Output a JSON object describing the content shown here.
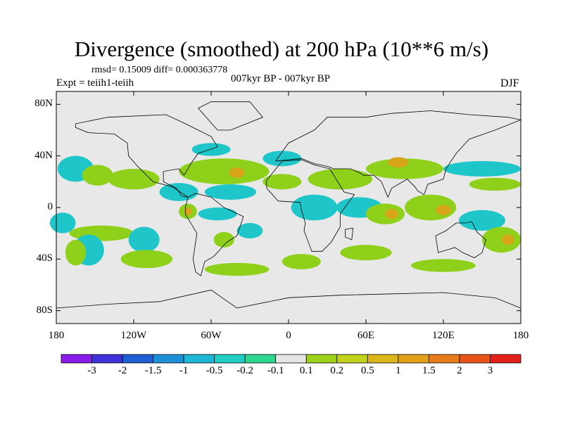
{
  "title": "Divergence (smoothed) at 200 hPa (10**6 m/s)",
  "stats": "rmsd= 0.15009 diff= 0.000363778",
  "experiment": "Expt = teiih1-teiih",
  "period": "007kyr BP - 007kyr BP",
  "season": "DJF",
  "map": {
    "projection": "cylindrical equidistant",
    "lon_range": [
      -180,
      180
    ],
    "lat_range": [
      -90,
      90
    ],
    "lat_ticks": [
      {
        "value": 80,
        "label": "80N"
      },
      {
        "value": 40,
        "label": "40N"
      },
      {
        "value": 0,
        "label": "0"
      },
      {
        "value": -40,
        "label": "40S"
      },
      {
        "value": -80,
        "label": "80S"
      }
    ],
    "lon_ticks": [
      {
        "value": -180,
        "label": "180"
      },
      {
        "value": -120,
        "label": "120W"
      },
      {
        "value": -60,
        "label": "60W"
      },
      {
        "value": 0,
        "label": "0"
      },
      {
        "value": 60,
        "label": "60E"
      },
      {
        "value": 120,
        "label": "120E"
      },
      {
        "value": 180,
        "label": "180"
      }
    ],
    "background_color": "#e8e8e8",
    "field_regions": [
      {
        "color": "#1fc6c9",
        "lon": -165,
        "lat": 30,
        "rlon": 14,
        "rlat": 10
      },
      {
        "color": "#8fd01a",
        "lon": -148,
        "lat": 25,
        "rlon": 12,
        "rlat": 8
      },
      {
        "color": "#8fd01a",
        "lon": -120,
        "lat": 22,
        "rlon": 20,
        "rlat": 8
      },
      {
        "color": "#1fc6c9",
        "lon": -175,
        "lat": -12,
        "rlon": 10,
        "rlat": 8
      },
      {
        "color": "#8fd01a",
        "lon": -145,
        "lat": -20,
        "rlon": 25,
        "rlat": 6
      },
      {
        "color": "#1fc6c9",
        "lon": -155,
        "lat": -33,
        "rlon": 12,
        "rlat": 12
      },
      {
        "color": "#8fd01a",
        "lon": -165,
        "lat": -35,
        "rlon": 8,
        "rlat": 10
      },
      {
        "color": "#1fc6c9",
        "lon": -112,
        "lat": -25,
        "rlon": 12,
        "rlat": 10
      },
      {
        "color": "#8fd01a",
        "lon": -110,
        "lat": -40,
        "rlon": 20,
        "rlat": 7
      },
      {
        "color": "#1fc6c9",
        "lon": -85,
        "lat": 12,
        "rlon": 15,
        "rlat": 7
      },
      {
        "color": "#8fd01a",
        "lon": -78,
        "lat": -3,
        "rlon": 7,
        "rlat": 6
      },
      {
        "color": "#d7a51a",
        "lon": -78,
        "lat": -3,
        "rlon": 3,
        "rlat": 3
      },
      {
        "color": "#8fd01a",
        "lon": -50,
        "lat": 28,
        "rlon": 35,
        "rlat": 10
      },
      {
        "color": "#d7a51a",
        "lon": -40,
        "lat": 27,
        "rlon": 6,
        "rlat": 4
      },
      {
        "color": "#1fc6c9",
        "lon": -60,
        "lat": 45,
        "rlon": 15,
        "rlat": 5
      },
      {
        "color": "#1fc6c9",
        "lon": -5,
        "lat": 38,
        "rlon": 15,
        "rlat": 6
      },
      {
        "color": "#1fc6c9",
        "lon": -45,
        "lat": 12,
        "rlon": 20,
        "rlat": 6
      },
      {
        "color": "#1fc6c9",
        "lon": -55,
        "lat": -5,
        "rlon": 15,
        "rlat": 5
      },
      {
        "color": "#8fd01a",
        "lon": -50,
        "lat": -25,
        "rlon": 8,
        "rlat": 6
      },
      {
        "color": "#1fc6c9",
        "lon": -30,
        "lat": -18,
        "rlon": 10,
        "rlat": 6
      },
      {
        "color": "#8fd01a",
        "lon": -40,
        "lat": -48,
        "rlon": 25,
        "rlat": 5
      },
      {
        "color": "#8fd01a",
        "lon": -5,
        "lat": 20,
        "rlon": 15,
        "rlat": 6
      },
      {
        "color": "#8fd01a",
        "lon": 40,
        "lat": 22,
        "rlon": 25,
        "rlat": 8
      },
      {
        "color": "#1fc6c9",
        "lon": 20,
        "lat": 0,
        "rlon": 18,
        "rlat": 10
      },
      {
        "color": "#1fc6c9",
        "lon": 55,
        "lat": 0,
        "rlon": 18,
        "rlat": 8
      },
      {
        "color": "#8fd01a",
        "lon": 75,
        "lat": -5,
        "rlon": 15,
        "rlat": 8
      },
      {
        "color": "#d7a51a",
        "lon": 80,
        "lat": -5,
        "rlon": 5,
        "rlat": 4
      },
      {
        "color": "#8fd01a",
        "lon": 10,
        "lat": -42,
        "rlon": 15,
        "rlat": 6
      },
      {
        "color": "#8fd01a",
        "lon": 60,
        "lat": -35,
        "rlon": 20,
        "rlat": 6
      },
      {
        "color": "#8fd01a",
        "lon": 90,
        "lat": 30,
        "rlon": 30,
        "rlat": 8
      },
      {
        "color": "#d7a51a",
        "lon": 85,
        "lat": 35,
        "rlon": 8,
        "rlat": 4
      },
      {
        "color": "#1fc6c9",
        "lon": 150,
        "lat": 30,
        "rlon": 30,
        "rlat": 6
      },
      {
        "color": "#8fd01a",
        "lon": 160,
        "lat": 18,
        "rlon": 20,
        "rlat": 5
      },
      {
        "color": "#8fd01a",
        "lon": 110,
        "lat": 0,
        "rlon": 20,
        "rlat": 10
      },
      {
        "color": "#d7a51a",
        "lon": 120,
        "lat": -2,
        "rlon": 6,
        "rlat": 4
      },
      {
        "color": "#1fc6c9",
        "lon": 150,
        "lat": -10,
        "rlon": 18,
        "rlat": 8
      },
      {
        "color": "#8fd01a",
        "lon": 165,
        "lat": -25,
        "rlon": 15,
        "rlat": 10
      },
      {
        "color": "#d7a51a",
        "lon": 170,
        "lat": -25,
        "rlon": 5,
        "rlat": 4
      },
      {
        "color": "#8fd01a",
        "lon": 120,
        "lat": -45,
        "rlon": 25,
        "rlat": 5
      }
    ],
    "land_outlines": [
      [
        [
          -165,
          65
        ],
        [
          -140,
          70
        ],
        [
          -95,
          72
        ],
        [
          -80,
          65
        ],
        [
          -60,
          55
        ],
        [
          -55,
          47
        ],
        [
          -70,
          42
        ],
        [
          -75,
          35
        ],
        [
          -81,
          25
        ],
        [
          -85,
          30
        ],
        [
          -97,
          28
        ],
        [
          -97,
          20
        ],
        [
          -87,
          15
        ],
        [
          -83,
          9
        ],
        [
          -78,
          8
        ],
        [
          -90,
          16
        ],
        [
          -105,
          20
        ],
        [
          -117,
          32
        ],
        [
          -124,
          40
        ],
        [
          -125,
          50
        ],
        [
          -135,
          57
        ],
        [
          -155,
          58
        ],
        [
          -165,
          62
        ],
        [
          -165,
          65
        ]
      ],
      [
        [
          -78,
          8
        ],
        [
          -72,
          11
        ],
        [
          -60,
          8
        ],
        [
          -50,
          0
        ],
        [
          -35,
          -7
        ],
        [
          -40,
          -22
        ],
        [
          -48,
          -27
        ],
        [
          -58,
          -38
        ],
        [
          -65,
          -42
        ],
        [
          -68,
          -53
        ],
        [
          -72,
          -50
        ],
        [
          -74,
          -40
        ],
        [
          -71,
          -20
        ],
        [
          -80,
          -5
        ],
        [
          -80,
          0
        ],
        [
          -78,
          8
        ]
      ],
      [
        [
          -55,
          60
        ],
        [
          -45,
          60
        ],
        [
          -20,
          70
        ],
        [
          -30,
          82
        ],
        [
          -60,
          82
        ],
        [
          -70,
          77
        ],
        [
          -55,
          60
        ]
      ],
      [
        [
          -10,
          36
        ],
        [
          -5,
          43
        ],
        [
          0,
          50
        ],
        [
          10,
          55
        ],
        [
          20,
          60
        ],
        [
          30,
          70
        ],
        [
          60,
          70
        ],
        [
          80,
          73
        ],
        [
          110,
          75
        ],
        [
          140,
          72
        ],
        [
          170,
          70
        ],
        [
          180,
          68
        ],
        [
          160,
          60
        ],
        [
          140,
          53
        ],
        [
          130,
          42
        ],
        [
          122,
          30
        ],
        [
          120,
          22
        ],
        [
          108,
          18
        ],
        [
          105,
          10
        ],
        [
          100,
          13
        ],
        [
          98,
          16
        ],
        [
          92,
          22
        ],
        [
          80,
          15
        ],
        [
          77,
          8
        ],
        [
          72,
          20
        ],
        [
          66,
          25
        ],
        [
          58,
          25
        ],
        [
          55,
          27
        ],
        [
          48,
          30
        ],
        [
          35,
          30
        ],
        [
          30,
          32
        ],
        [
          20,
          34
        ],
        [
          10,
          38
        ],
        [
          -10,
          36
        ]
      ],
      [
        [
          -17,
          21
        ],
        [
          -17,
          15
        ],
        [
          -8,
          5
        ],
        [
          9,
          4
        ],
        [
          10,
          -2
        ],
        [
          13,
          -12
        ],
        [
          12,
          -18
        ],
        [
          18,
          -34
        ],
        [
          26,
          -34
        ],
        [
          33,
          -27
        ],
        [
          40,
          -15
        ],
        [
          40,
          -5
        ],
        [
          51,
          10
        ],
        [
          43,
          12
        ],
        [
          32,
          30
        ],
        [
          20,
          33
        ],
        [
          10,
          37
        ],
        [
          -5,
          36
        ],
        [
          -17,
          21
        ]
      ],
      [
        [
          114,
          -22
        ],
        [
          122,
          -18
        ],
        [
          130,
          -12
        ],
        [
          137,
          -12
        ],
        [
          142,
          -11
        ],
        [
          146,
          -19
        ],
        [
          153,
          -25
        ],
        [
          150,
          -35
        ],
        [
          144,
          -39
        ],
        [
          135,
          -35
        ],
        [
          129,
          -31
        ],
        [
          116,
          -35
        ],
        [
          114,
          -22
        ]
      ],
      [
        [
          44,
          -17
        ],
        [
          50,
          -16
        ],
        [
          49,
          -25
        ],
        [
          44,
          -23
        ],
        [
          44,
          -17
        ]
      ],
      [
        [
          -180,
          -78
        ],
        [
          -140,
          -75
        ],
        [
          -100,
          -73
        ],
        [
          -60,
          -64
        ],
        [
          -40,
          -78
        ],
        [
          0,
          -70
        ],
        [
          40,
          -68
        ],
        [
          80,
          -67
        ],
        [
          120,
          -66
        ],
        [
          160,
          -70
        ],
        [
          180,
          -78
        ]
      ]
    ]
  },
  "colorbar": {
    "colors": [
      "#8a1be8",
      "#3e33d8",
      "#1f5fd6",
      "#1e8fd9",
      "#1db8d6",
      "#1fcfc4",
      "#2fd68e",
      "#e6e6e6",
      "#9fd01a",
      "#c2d21a",
      "#dbb51a",
      "#e3a11a",
      "#e67d1a",
      "#e6541a",
      "#e4201a"
    ],
    "labels": [
      "-3",
      "-2",
      "-1.5",
      "-1",
      "-0.5",
      "-0.2",
      "-0.1",
      "0.1",
      "0.2",
      "0.5",
      "1",
      "1.5",
      "2",
      "3"
    ]
  }
}
